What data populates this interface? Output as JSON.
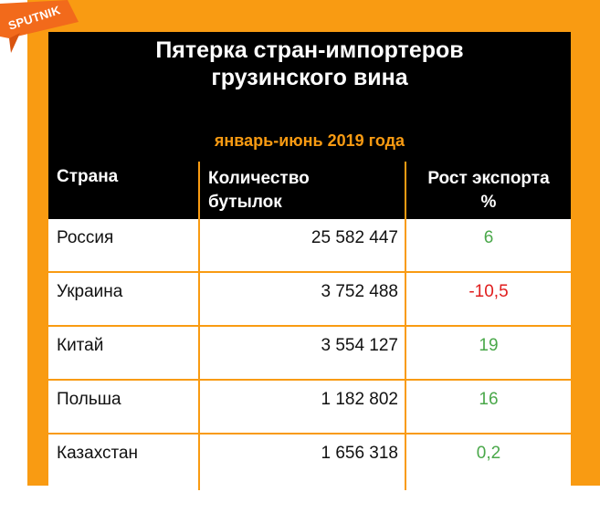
{
  "logo": {
    "text": "SPUTNIK"
  },
  "title": {
    "line1": "Пятерка стран-импортеров",
    "line2": "грузинского вина"
  },
  "subtitle": "январь-июнь 2019 года",
  "table": {
    "headers": {
      "country": "Страна",
      "quantity_line1": "Количество",
      "quantity_line2": "бутылок",
      "growth_line1": "Рост экспорта",
      "growth_line2": "%"
    },
    "rows": [
      {
        "country": "Россия",
        "quantity": "25 582 447",
        "growth": "6",
        "growth_color": "#4aa84a"
      },
      {
        "country": "Украина",
        "quantity": "3 752 488",
        "growth": "-10,5",
        "growth_color": "#e01e1e"
      },
      {
        "country": "Китай",
        "quantity": "3 554 127",
        "growth": "19",
        "growth_color": "#4aa84a"
      },
      {
        "country": "Польша",
        "quantity": "1 182 802",
        "growth": "16",
        "growth_color": "#4aa84a"
      },
      {
        "country": "Казахстан",
        "quantity": "1 656 318",
        "growth": "0,2",
        "growth_color": "#4aa84a"
      }
    ]
  },
  "colors": {
    "accent": "#f99b12",
    "card": "#000000",
    "positive": "#4aa84a",
    "negative": "#e01e1e"
  }
}
